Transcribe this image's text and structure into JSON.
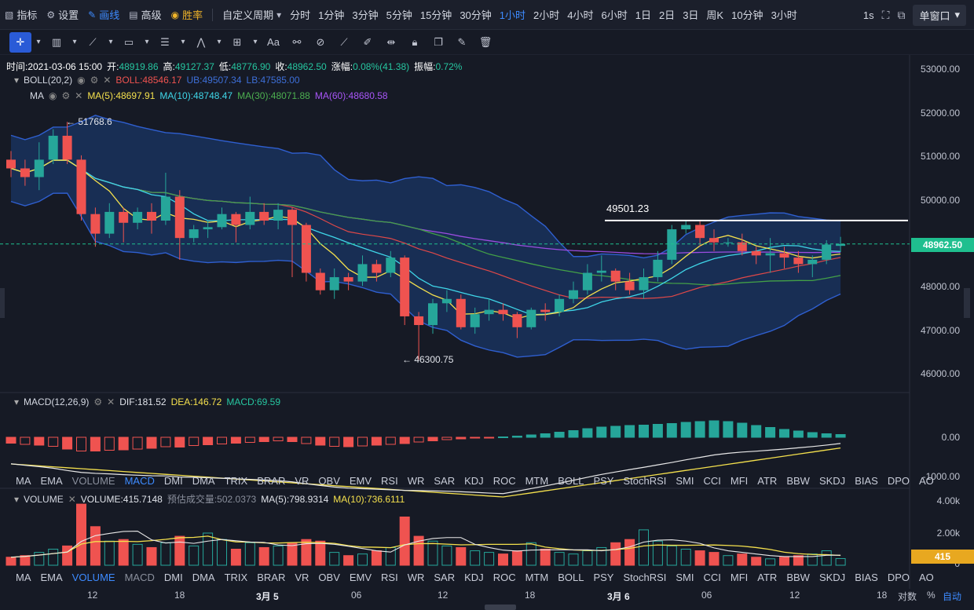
{
  "toolbar": {
    "indicators": "指标",
    "settings": "设置",
    "draw": "画线",
    "advanced": "高级",
    "winrate": "胜率",
    "custom_period": "自定义周期",
    "periods": [
      "分时",
      "1分钟",
      "3分钟",
      "5分钟",
      "15分钟",
      "30分钟",
      "1小时",
      "2小时",
      "4小时",
      "6小时",
      "1日",
      "2日",
      "3日",
      "周K",
      "10分钟",
      "3小时"
    ],
    "refresh": "1s",
    "window_mode": "单窗口"
  },
  "info": {
    "time": "时间:2021-03-06 15:00",
    "open_label": "开:",
    "open": "48919.86",
    "high_label": "高:",
    "high": "49127.37",
    "low_label": "低:",
    "low": "48776.90",
    "close_label": "收:",
    "close": "48962.50",
    "change_label": "涨幅:",
    "change": "0.08%(41.38)",
    "amp_label": "振幅:",
    "amp": "0.72%"
  },
  "boll": {
    "name": "BOLL(20,2)",
    "boll": "BOLL:48546.17",
    "ub": "UB:49507.34",
    "lb": "LB:47585.00"
  },
  "ma": {
    "name": "MA",
    "ma5": "MA(5):48697.91",
    "ma10": "MA(10):48748.47",
    "ma30": "MA(30):48071.88",
    "ma60": "MA(60):48680.58"
  },
  "price_axis": [
    "53000.00",
    "52000.00",
    "51000.00",
    "50000.00",
    "49000.00",
    "48000.00",
    "47000.00",
    "46000.00"
  ],
  "current_price": "48962.50",
  "annotations": {
    "high": "← 51768.6",
    "low": "← 46300.75",
    "line": "49501.23"
  },
  "macd": {
    "name": "MACD(12,26,9)",
    "dif": "DIF:181.52",
    "dea": "DEA:146.72",
    "macd": "MACD:69.59",
    "axis": [
      "0.00",
      "-1000.00"
    ]
  },
  "indicator_tabs": [
    "MA",
    "EMA",
    "VOLUME",
    "MACD",
    "DMI",
    "DMA",
    "TRIX",
    "BRAR",
    "VR",
    "OBV",
    "EMV",
    "RSI",
    "WR",
    "SAR",
    "KDJ",
    "ROC",
    "MTM",
    "BOLL",
    "PSY",
    "StochRSI",
    "SMI",
    "CCI",
    "MFI",
    "ATR",
    "BBW",
    "SKDJ",
    "BIAS",
    "DPO",
    "AO"
  ],
  "volume": {
    "name": "VOLUME",
    "vol": "VOLUME:415.7148",
    "forecast": "预估成交量:502.0373",
    "ma5": "MA(5):798.9314",
    "ma10": "MA(10):736.6111",
    "axis": [
      "4.00k",
      "2.00k",
      "0"
    ],
    "current": "415"
  },
  "time_axis": [
    "12",
    "18",
    "3月 5",
    "06",
    "12",
    "18",
    "3月 6",
    "06",
    "12",
    "18"
  ],
  "bottom_right": {
    "pair": "对数",
    "percent": "%",
    "auto": "自动"
  },
  "colors": {
    "up": "#26a69a",
    "down": "#ef5350",
    "accent": "#3d8bff",
    "gold": "#f0b429"
  },
  "chart_data": {
    "type": "candlestick",
    "interval": "1小时",
    "ylim": [
      45800,
      53200
    ],
    "candles": [
      [
        50900,
        50700,
        51100,
        50500
      ],
      [
        50700,
        50500,
        50900,
        50300
      ],
      [
        50500,
        50900,
        51300,
        50200
      ],
      [
        50900,
        51450,
        51600,
        50800
      ],
      [
        51450,
        50900,
        51768.6,
        50800
      ],
      [
        50900,
        49650,
        51000,
        49500
      ],
      [
        49650,
        49200,
        49800,
        48900
      ],
      [
        49200,
        49700,
        49900,
        49100
      ],
      [
        49700,
        49450,
        49800,
        49000
      ],
      [
        49450,
        49700,
        49800,
        49300
      ],
      [
        49700,
        49500,
        49900,
        49200
      ],
      [
        49500,
        50050,
        50600,
        49400
      ],
      [
        50050,
        49100,
        50200,
        48600
      ],
      [
        49100,
        49300,
        49400,
        49000
      ],
      [
        49300,
        49350,
        49500,
        49100
      ],
      [
        49350,
        49650,
        49800,
        49300
      ],
      [
        49650,
        49400,
        49700,
        49000
      ],
      [
        49400,
        49700,
        50050,
        49300
      ],
      [
        49700,
        49500,
        49900,
        49400
      ],
      [
        49500,
        49750,
        49900,
        49300
      ],
      [
        49750,
        49400,
        49800,
        48200
      ],
      [
        49400,
        48300,
        49450,
        48100
      ],
      [
        48300,
        47900,
        48400,
        47800
      ],
      [
        47900,
        48200,
        48400,
        47700
      ],
      [
        48200,
        48100,
        48300,
        47900
      ],
      [
        48100,
        48500,
        48700,
        48000
      ],
      [
        48500,
        48300,
        48600,
        48100
      ],
      [
        48300,
        48650,
        48800,
        48200
      ],
      [
        48650,
        47300,
        48700,
        47100
      ],
      [
        47300,
        47100,
        47400,
        46300.75
      ],
      [
        47100,
        47600,
        47700,
        46900
      ],
      [
        47600,
        47700,
        47900,
        47400
      ],
      [
        47700,
        47050,
        47800,
        47000
      ],
      [
        47050,
        47350,
        47500,
        46900
      ],
      [
        47350,
        47450,
        47700,
        47200
      ],
      [
        47450,
        47350,
        47600,
        47200
      ],
      [
        47350,
        47050,
        47400,
        46800
      ],
      [
        47050,
        47450,
        47500,
        47000
      ],
      [
        47450,
        47400,
        47600,
        47200
      ],
      [
        47400,
        47700,
        47800,
        47300
      ],
      [
        47700,
        47900,
        48100,
        47600
      ],
      [
        47900,
        48300,
        48500,
        47800
      ],
      [
        48300,
        48350,
        48700,
        48100
      ],
      [
        48350,
        48100,
        48400,
        47900
      ],
      [
        48100,
        47900,
        48300,
        47800
      ],
      [
        47900,
        48200,
        48400,
        47700
      ],
      [
        48200,
        48600,
        48800,
        48100
      ],
      [
        48600,
        49300,
        49400,
        48500
      ],
      [
        49300,
        49400,
        49501.23,
        49200
      ],
      [
        49400,
        49100,
        49500,
        48900
      ],
      [
        49100,
        49000,
        49300,
        48800
      ],
      [
        49000,
        49000,
        49100,
        48900
      ],
      [
        49000,
        48800,
        49200,
        48700
      ],
      [
        48800,
        48700,
        48900,
        48500
      ],
      [
        48700,
        48750,
        49100,
        48300
      ],
      [
        48750,
        48650,
        48900,
        48400
      ],
      [
        48650,
        48500,
        48800,
        48300
      ],
      [
        48500,
        48600,
        48700,
        48200
      ],
      [
        48600,
        48950,
        49050,
        48500
      ],
      [
        48919.86,
        48962.5,
        49127.37,
        48776.9
      ]
    ],
    "macd_hist": [
      -150,
      -180,
      -200,
      -230,
      -300,
      -350,
      -350,
      -330,
      -320,
      -300,
      -280,
      -240,
      -250,
      -210,
      -190,
      -170,
      -150,
      -130,
      -110,
      -90,
      -110,
      -160,
      -200,
      -230,
      -240,
      -220,
      -200,
      -180,
      -160,
      -120,
      -90,
      -60,
      -40,
      -20,
      -10,
      10,
      30,
      60,
      90,
      130,
      170,
      220,
      260,
      280,
      300,
      310,
      330,
      350,
      380,
      400,
      420,
      400,
      360,
      300,
      250,
      200,
      160,
      120,
      90,
      69.59
    ],
    "volume_values": [
      500,
      600,
      800,
      1000,
      1200,
      3800,
      2400,
      1500,
      1600,
      1300,
      1100,
      1400,
      1800,
      1200,
      2000,
      1600,
      1000,
      1400,
      1100,
      1200,
      1400,
      1600,
      1500,
      800,
      600,
      700,
      900,
      1100,
      3000,
      1800,
      1500,
      1200,
      1100,
      900,
      800,
      700,
      900,
      1400,
      1000,
      800,
      700,
      900,
      1100,
      1400,
      1600,
      2200,
      1500,
      1200,
      1000,
      900,
      800,
      600,
      700,
      500,
      400,
      500,
      600,
      700,
      900,
      415.7148
    ]
  }
}
